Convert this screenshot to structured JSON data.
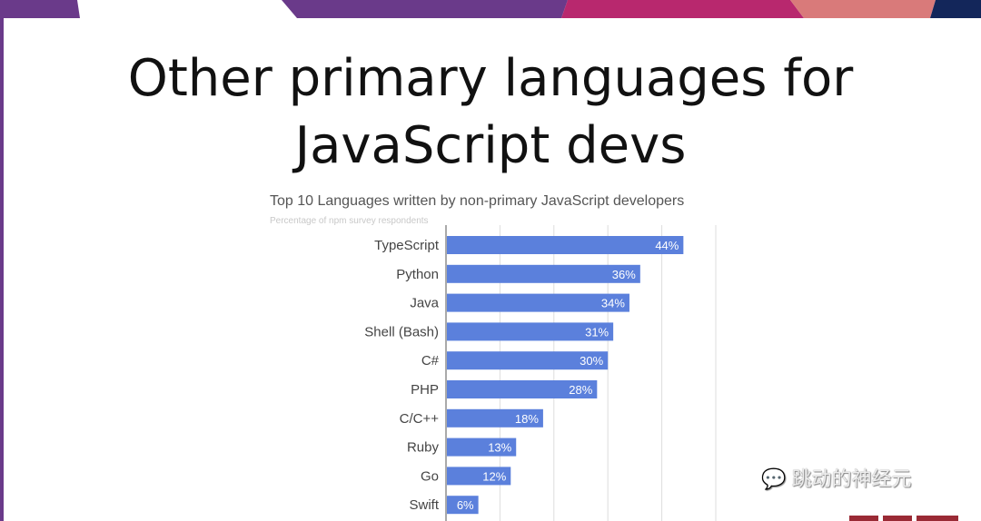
{
  "slide": {
    "title_line1": "Other primary languages for",
    "title_line2": "JavaScript devs",
    "watermark": "跳动的神经元",
    "banner_colors": [
      "#6a3a8a",
      "#ffffff",
      "#6a3a8a",
      "#b8286e",
      "#d97a7a",
      "#13265a"
    ]
  },
  "chart_data": {
    "type": "bar",
    "orientation": "horizontal",
    "title": "Top 10 Languages written by non-primary JavaScript developers",
    "subtitle": "Percentage of npm survey respondents",
    "categories": [
      "TypeScript",
      "Python",
      "Java",
      "Shell (Bash)",
      "C#",
      "PHP",
      "C/C++",
      "Ruby",
      "Go",
      "Swift"
    ],
    "values": [
      44,
      36,
      34,
      31,
      30,
      28,
      18,
      13,
      12,
      6
    ],
    "value_labels": [
      "44%",
      "36%",
      "34%",
      "31%",
      "30%",
      "28%",
      "18%",
      "13%",
      "12%",
      "6%"
    ],
    "xlim": [
      0,
      50
    ],
    "grid": true,
    "bar_color": "#5b80dc",
    "xlabel": "",
    "ylabel": ""
  }
}
